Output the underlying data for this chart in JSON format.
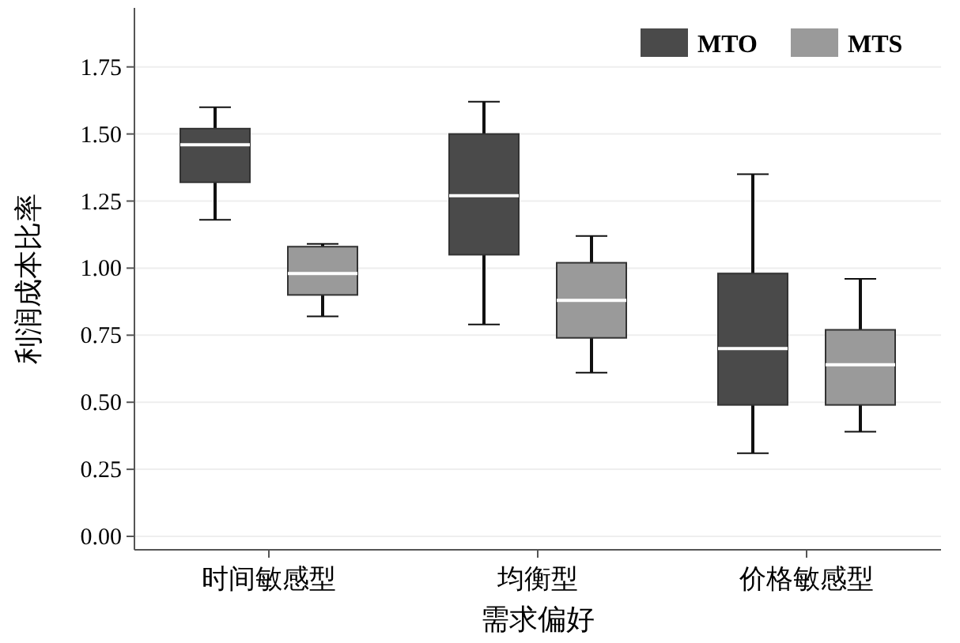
{
  "chart_data": {
    "type": "box",
    "xlabel": "需求偏好",
    "ylabel": "利润成本比率",
    "categories": [
      "时间敏感型",
      "均衡型",
      "价格敏感型"
    ],
    "series": [
      {
        "name": "MTO",
        "color": "#4a4a4a",
        "boxes": [
          {
            "low": 1.18,
            "q1": 1.32,
            "median": 1.46,
            "q3": 1.52,
            "high": 1.6
          },
          {
            "low": 0.79,
            "q1": 1.05,
            "median": 1.27,
            "q3": 1.5,
            "high": 1.62
          },
          {
            "low": 0.31,
            "q1": 0.49,
            "median": 0.7,
            "q3": 0.98,
            "high": 1.35
          }
        ]
      },
      {
        "name": "MTS",
        "color": "#9a9a9a",
        "boxes": [
          {
            "low": 0.82,
            "q1": 0.9,
            "median": 0.98,
            "q3": 1.08,
            "high": 1.09
          },
          {
            "low": 0.61,
            "q1": 0.74,
            "median": 0.88,
            "q3": 1.02,
            "high": 1.12
          },
          {
            "low": 0.39,
            "q1": 0.49,
            "median": 0.64,
            "q3": 0.77,
            "high": 0.96
          }
        ]
      }
    ],
    "ylim": [
      -0.05,
      1.97
    ],
    "yticks": [
      {
        "value": 0,
        "label": "0.00"
      },
      0.25,
      {
        "value": 0.5,
        "label": "0.50"
      },
      0.75,
      {
        "value": 1,
        "label": "1.00"
      },
      1.25,
      {
        "value": 1.5,
        "label": "1.50"
      },
      1.75
    ],
    "grid": "y",
    "legend": "top right"
  }
}
